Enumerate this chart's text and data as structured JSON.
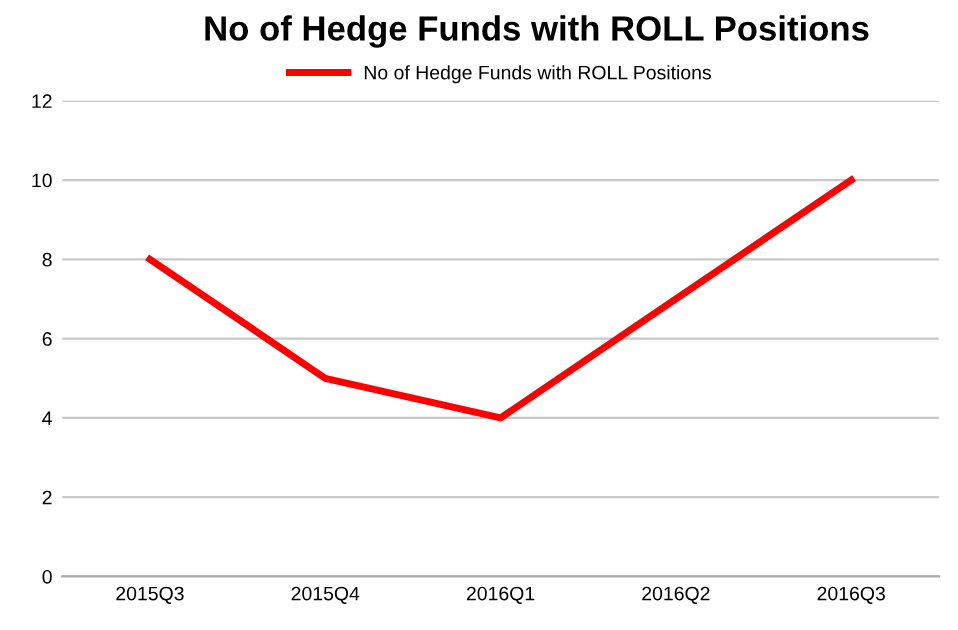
{
  "chart_data": {
    "type": "line",
    "title": "No of Hedge Funds with ROLL Positions",
    "categories": [
      "2015Q3",
      "2015Q4",
      "2016Q1",
      "2016Q2",
      "2016Q3"
    ],
    "series": [
      {
        "name": "No of Hedge Funds with ROLL Positions",
        "color": "#ff0000",
        "values": [
          8,
          5,
          4,
          7,
          10
        ]
      }
    ],
    "ylim": [
      0,
      12
    ],
    "yticks": [
      0,
      2,
      4,
      6,
      8,
      10,
      12
    ],
    "grid": "y",
    "legend": "top",
    "marker": "none",
    "line_style": "solid"
  }
}
